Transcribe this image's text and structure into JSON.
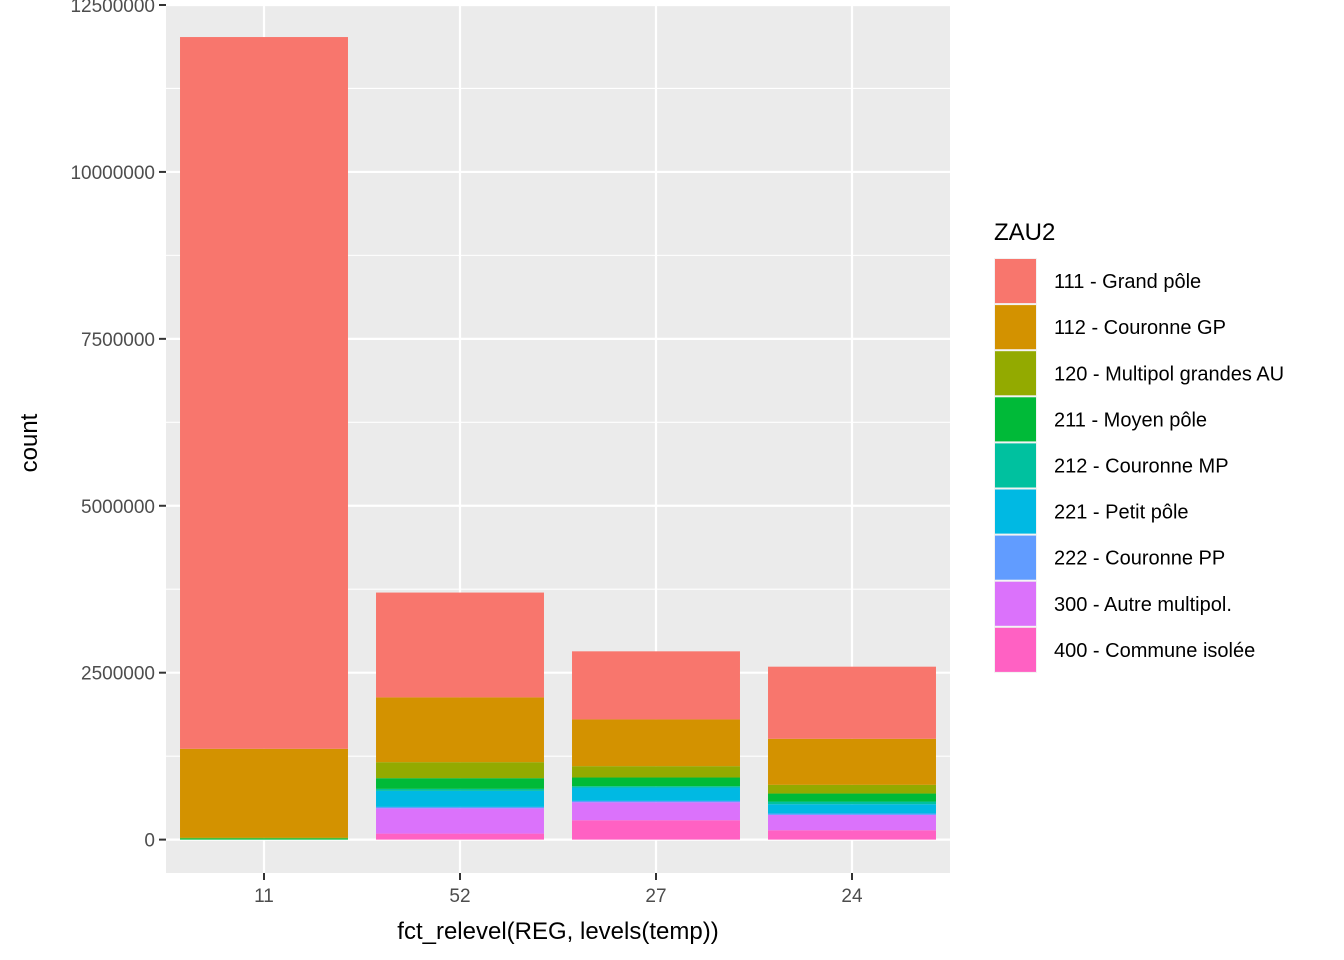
{
  "chart_data": {
    "type": "bar",
    "stacked": true,
    "categories": [
      "11",
      "52",
      "27",
      "24"
    ],
    "xlabel": "fct_relevel(REG, levels(temp))",
    "ylabel": "count",
    "ylim": [
      -500000,
      12500000
    ],
    "yticks": [
      0,
      2500000,
      5000000,
      7500000,
      10000000,
      12500000
    ],
    "ytick_labels": [
      "0",
      "2500000",
      "5000000",
      "7500000",
      "10000000",
      "12500000"
    ],
    "grid": true,
    "legend_title": "ZAU2",
    "legend_position": "right",
    "series": [
      {
        "name": "111 - Grand pôle",
        "color": "#F8766D",
        "values": [
          10660000,
          1570000,
          1020000,
          1080000
        ]
      },
      {
        "name": "112 - Couronne GP",
        "color": "#D39200",
        "values": [
          1330000,
          970000,
          700000,
          690000
        ]
      },
      {
        "name": "120 - Multipol grandes AU",
        "color": "#93AA00",
        "values": [
          10000,
          240000,
          170000,
          130000
        ]
      },
      {
        "name": "211 - Moyen pôle",
        "color": "#00BA38",
        "values": [
          20000,
          160000,
          130000,
          120000
        ]
      },
      {
        "name": "212 - Couronne MP",
        "color": "#00C19F",
        "values": [
          0,
          30000,
          20000,
          40000
        ]
      },
      {
        "name": "221 - Petit pôle",
        "color": "#00B9E3",
        "values": [
          0,
          240000,
          200000,
          140000
        ]
      },
      {
        "name": "222 - Couronne PP",
        "color": "#619CFF",
        "values": [
          0,
          20000,
          20000,
          20000
        ]
      },
      {
        "name": "300 - Autre multipol.",
        "color": "#DB72FB",
        "values": [
          0,
          380000,
          270000,
          230000
        ]
      },
      {
        "name": "400 - Commune isolée",
        "color": "#FF61C3",
        "values": [
          0,
          90000,
          290000,
          140000
        ]
      }
    ]
  }
}
